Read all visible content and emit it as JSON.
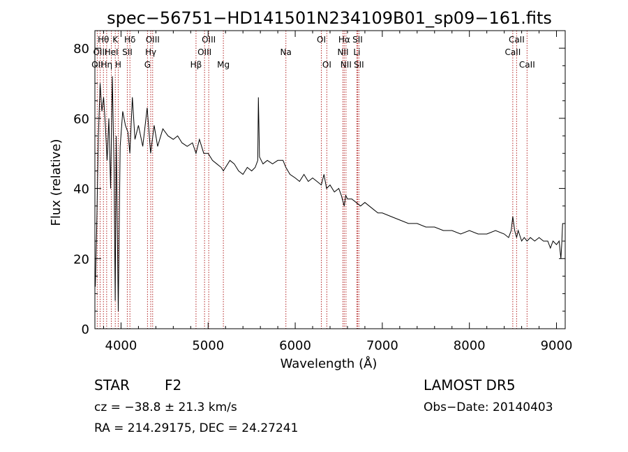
{
  "chart_data": {
    "type": "line",
    "title": "spec−56751−HD141501N234109B01_sp09−161.fits",
    "xlabel": "Wavelength (Å)",
    "ylabel": "Flux (relative)",
    "xlim": [
      3700,
      9100
    ],
    "ylim": [
      0,
      85
    ],
    "x_ticks": [
      {
        "value": 4000,
        "label": "4000"
      },
      {
        "value": 5000,
        "label": "5000"
      },
      {
        "value": 6000,
        "label": "6000"
      },
      {
        "value": 7000,
        "label": "7000"
      },
      {
        "value": 8000,
        "label": "8000"
      },
      {
        "value": 9000,
        "label": "9000"
      }
    ],
    "y_ticks": [
      {
        "value": 0,
        "label": "0"
      },
      {
        "value": 20,
        "label": "20"
      },
      {
        "value": 40,
        "label": "40"
      },
      {
        "value": 60,
        "label": "60"
      },
      {
        "value": 80,
        "label": "80"
      }
    ],
    "series": [
      {
        "color": "#000000",
        "x": [
          3705,
          3720,
          3740,
          3760,
          3780,
          3800,
          3820,
          3840,
          3860,
          3880,
          3900,
          3920,
          3933,
          3945,
          3968,
          3990,
          4020,
          4050,
          4080,
          4101,
          4130,
          4160,
          4200,
          4250,
          4300,
          4340,
          4380,
          4420,
          4480,
          4540,
          4600,
          4650,
          4700,
          4760,
          4820,
          4861,
          4900,
          4950,
          5000,
          5050,
          5100,
          5150,
          5175,
          5200,
          5250,
          5300,
          5350,
          5400,
          5450,
          5500,
          5540,
          5570,
          5577,
          5590,
          5630,
          5680,
          5740,
          5800,
          5860,
          5893,
          5940,
          6000,
          6050,
          6100,
          6150,
          6200,
          6250,
          6300,
          6330,
          6360,
          6400,
          6450,
          6500,
          6530,
          6563,
          6580,
          6600,
          6650,
          6700,
          6750,
          6800,
          6850,
          6900,
          6950,
          7000,
          7100,
          7200,
          7300,
          7400,
          7500,
          7600,
          7700,
          7800,
          7900,
          8000,
          8100,
          8200,
          8300,
          8400,
          8450,
          8480,
          8498,
          8520,
          8542,
          8560,
          8600,
          8630,
          8662,
          8700,
          8750,
          8800,
          8850,
          8900,
          8930,
          8960,
          9000,
          9030,
          9050,
          9060,
          9070
        ],
        "y": [
          12,
          28,
          55,
          70,
          62,
          66,
          58,
          48,
          60,
          40,
          72,
          45,
          8,
          55,
          5,
          52,
          62,
          58,
          56,
          50,
          66,
          54,
          58,
          52,
          63,
          50,
          58,
          52,
          57,
          55,
          54,
          55,
          53,
          52,
          53,
          50,
          54,
          50,
          50,
          48,
          47,
          46,
          45,
          46,
          48,
          47,
          45,
          44,
          46,
          45,
          46,
          48,
          66,
          49,
          47,
          48,
          47,
          48,
          48,
          46,
          44,
          43,
          42,
          44,
          42,
          43,
          42,
          41,
          44,
          40,
          41,
          39,
          40,
          38,
          35,
          38,
          37,
          37,
          36,
          35,
          36,
          35,
          34,
          33,
          33,
          32,
          31,
          30,
          30,
          29,
          29,
          28,
          28,
          27,
          28,
          27,
          27,
          28,
          27,
          26,
          28,
          32,
          28,
          26,
          28,
          25,
          26,
          25,
          26,
          25,
          26,
          25,
          25,
          23,
          25,
          24,
          25,
          20,
          24,
          30
        ]
      }
    ],
    "line_markers": [
      {
        "label": "OII",
        "wavelength": 3727,
        "row": 2
      },
      {
        "label": "OIII",
        "wavelength": 3760,
        "row": 1
      },
      {
        "label": "Hθ",
        "wavelength": 3798,
        "row": 0
      },
      {
        "label": "Hη",
        "wavelength": 3835,
        "row": 2
      },
      {
        "label": "HeI",
        "wavelength": 3889,
        "row": 1
      },
      {
        "label": "K",
        "wavelength": 3934,
        "row": 0
      },
      {
        "label": "H",
        "wavelength": 3968,
        "row": 2
      },
      {
        "label": "SII",
        "wavelength": 4072,
        "row": 1
      },
      {
        "label": "Hδ",
        "wavelength": 4102,
        "row": 0
      },
      {
        "label": "G",
        "wavelength": 4304,
        "row": 2
      },
      {
        "label": "Hγ",
        "wavelength": 4341,
        "row": 1
      },
      {
        "label": "OIII",
        "wavelength": 4363,
        "row": 0
      },
      {
        "label": "Hβ",
        "wavelength": 4861,
        "row": 2
      },
      {
        "label": "OIII",
        "wavelength": 4959,
        "row": 1
      },
      {
        "label": "OIII",
        "wavelength": 5007,
        "row": 0
      },
      {
        "label": "Mg",
        "wavelength": 5175,
        "row": 2
      },
      {
        "label": "Na",
        "wavelength": 5893,
        "row": 1
      },
      {
        "label": "OI",
        "wavelength": 6300,
        "row": 0
      },
      {
        "label": "OI",
        "wavelength": 6363,
        "row": 2
      },
      {
        "label": "NII",
        "wavelength": 6548,
        "row": 1
      },
      {
        "label": "Hα",
        "wavelength": 6563,
        "row": 0
      },
      {
        "label": "NII",
        "wavelength": 6583,
        "row": 2
      },
      {
        "label": "Li",
        "wavelength": 6708,
        "row": 1
      },
      {
        "label": "SII",
        "wavelength": 6716,
        "row": 0
      },
      {
        "label": "SII",
        "wavelength": 6731,
        "row": 2
      },
      {
        "label": "CaII",
        "wavelength": 8498,
        "row": 1
      },
      {
        "label": "CaII",
        "wavelength": 8542,
        "row": 0
      },
      {
        "label": "CaII",
        "wavelength": 8662,
        "row": 2
      }
    ]
  },
  "info": {
    "object_class": "STAR",
    "subclass": "F2",
    "survey": "LAMOST DR5",
    "redshift_text": "cz = −38.8 ± 21.3 km/s",
    "obs_date": "Obs−Date: 20140403",
    "coords": "RA = 214.29175, DEC =  24.27241"
  },
  "colors": {
    "marker_line": "#b22222",
    "spectrum": "#000000",
    "axes": "#000000"
  }
}
